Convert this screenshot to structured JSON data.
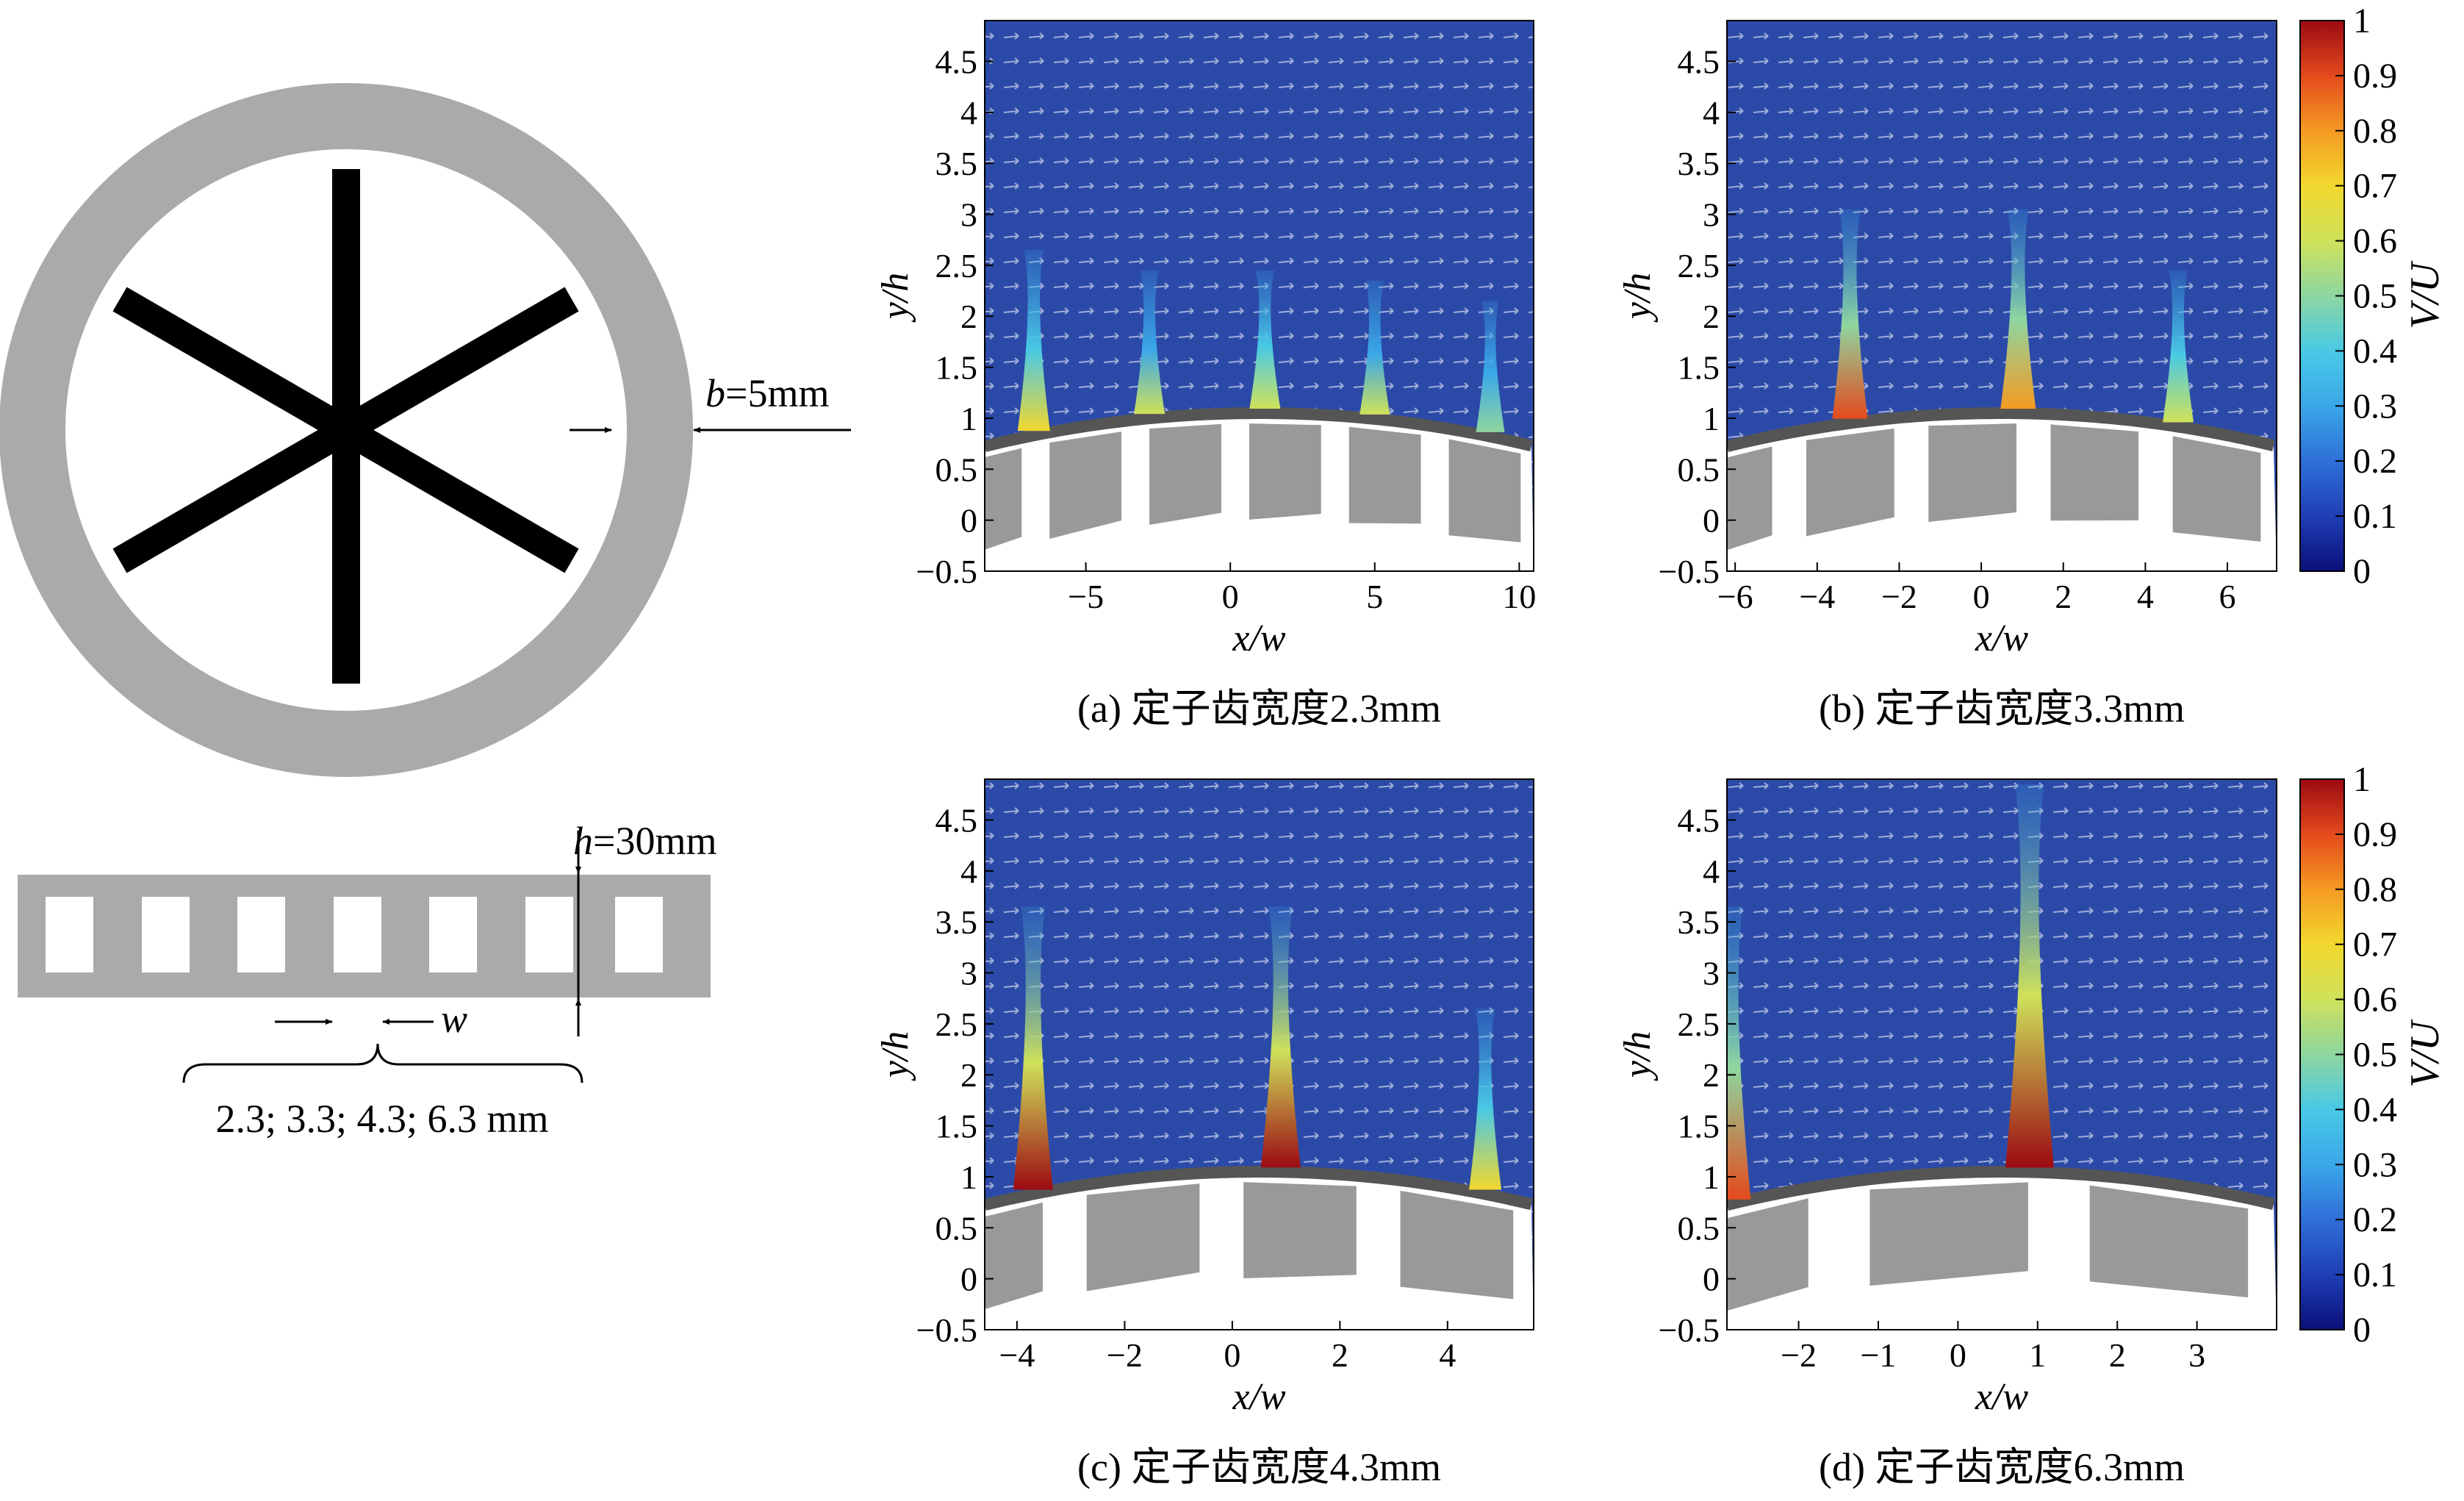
{
  "schematic": {
    "b_var": "b",
    "b_value": "=5mm",
    "h_var": "h",
    "h_value": "=30mm",
    "w_var": "w",
    "widths_label": "2.3; 3.3; 4.3; 6.3 mm"
  },
  "colorbar": {
    "label": "V/U",
    "ticks": [
      "0",
      "0.1",
      "0.2",
      "0.3",
      "0.4",
      "0.5",
      "0.6",
      "0.7",
      "0.8",
      "0.9",
      "1"
    ]
  },
  "chart_data": [
    {
      "type": "heatmap",
      "caption": "(a) 定子齿宽度2.3mm",
      "xlabel": "x/w",
      "ylabel": "y/h",
      "xlim": [
        -8.5,
        10.5
      ],
      "ylim": [
        -0.5,
        4.9
      ],
      "xticks": [
        -5,
        0,
        5,
        10
      ],
      "yticks": [
        -0.5,
        0,
        0.5,
        1,
        1.5,
        2,
        2.5,
        3,
        3.5,
        4,
        4.5
      ],
      "jets": [
        {
          "x": -6.8,
          "height": 1.6,
          "peak": 0.65
        },
        {
          "x": -2.8,
          "height": 1.4,
          "peak": 0.55
        },
        {
          "x": 1.2,
          "height": 1.4,
          "peak": 0.6
        },
        {
          "x": 5.0,
          "height": 1.3,
          "peak": 0.55
        },
        {
          "x": 9.0,
          "height": 1.1,
          "peak": 0.5
        }
      ]
    },
    {
      "type": "heatmap",
      "caption": "(b) 定子齿宽度3.3mm",
      "xlabel": "x/w",
      "ylabel": "y/h",
      "xlim": [
        -6.2,
        7.2
      ],
      "ylim": [
        -0.5,
        4.9
      ],
      "xticks": [
        -6,
        -4,
        -2,
        0,
        2,
        4,
        6
      ],
      "yticks": [
        -0.5,
        0,
        0.5,
        1,
        1.5,
        2,
        2.5,
        3,
        3.5,
        4,
        4.5
      ],
      "jets": [
        {
          "x": -3.2,
          "height": 2.0,
          "peak": 0.9
        },
        {
          "x": 0.9,
          "height": 2.0,
          "peak": 0.8
        },
        {
          "x": 4.8,
          "height": 1.4,
          "peak": 0.6
        }
      ]
    },
    {
      "type": "heatmap",
      "caption": "(c) 定子齿宽度4.3mm",
      "xlabel": "x/w",
      "ylabel": "y/h",
      "xlim": [
        -4.6,
        5.6
      ],
      "ylim": [
        -0.5,
        4.9
      ],
      "xticks": [
        -4,
        -2,
        0,
        2,
        4
      ],
      "yticks": [
        -0.5,
        0,
        0.5,
        1,
        1.5,
        2,
        2.5,
        3,
        3.5,
        4,
        4.5
      ],
      "jets": [
        {
          "x": -3.7,
          "height": 2.6,
          "peak": 1.0
        },
        {
          "x": 0.9,
          "height": 2.6,
          "peak": 1.0
        },
        {
          "x": 4.7,
          "height": 1.6,
          "peak": 0.7
        }
      ]
    },
    {
      "type": "heatmap",
      "caption": "(d) 定子齿宽度6.3mm",
      "xlabel": "x/w",
      "ylabel": "y/h",
      "xlim": [
        -2.9,
        4.0
      ],
      "ylim": [
        -0.5,
        4.9
      ],
      "xticks": [
        -2,
        -1,
        0,
        1,
        2,
        3
      ],
      "yticks": [
        -0.5,
        0,
        0.5,
        1,
        1.5,
        2,
        2.5,
        3,
        3.5,
        4,
        4.5
      ],
      "jets": [
        {
          "x": -2.85,
          "height": 2.6,
          "peak": 0.9
        },
        {
          "x": 0.9,
          "height": 3.8,
          "peak": 1.0
        }
      ]
    }
  ]
}
